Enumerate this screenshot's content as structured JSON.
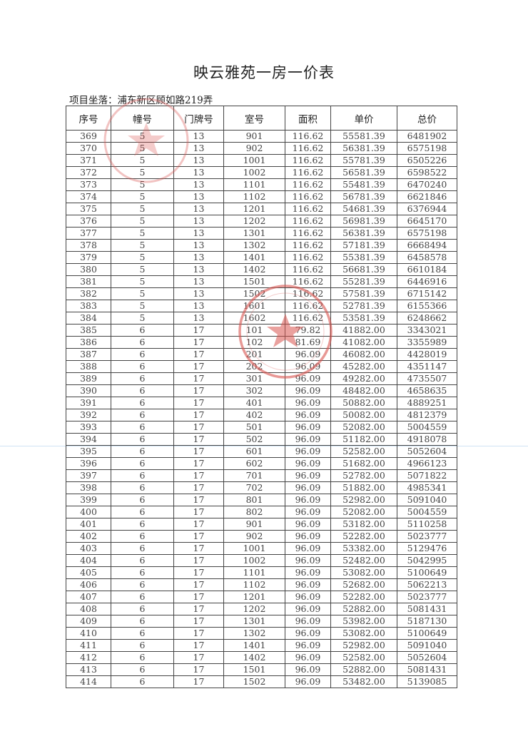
{
  "document": {
    "title": "映云雅苑一房一价表",
    "location_label": "项目坐落：浦东新区顾如路219弄"
  },
  "table": {
    "headers": [
      "序号",
      "幢号",
      "门牌号",
      "室号",
      "面积",
      "单价",
      "总价"
    ],
    "rows": [
      [
        "369",
        "5",
        "13",
        "901",
        "116.62",
        "55581.39",
        "6481902"
      ],
      [
        "370",
        "5",
        "13",
        "902",
        "116.62",
        "56381.39",
        "6575198"
      ],
      [
        "371",
        "5",
        "13",
        "1001",
        "116.62",
        "55781.39",
        "6505226"
      ],
      [
        "372",
        "5",
        "13",
        "1002",
        "116.62",
        "56581.39",
        "6598522"
      ],
      [
        "373",
        "5",
        "13",
        "1101",
        "116.62",
        "55481.39",
        "6470240"
      ],
      [
        "374",
        "5",
        "13",
        "1102",
        "116.62",
        "56781.39",
        "6621846"
      ],
      [
        "375",
        "5",
        "13",
        "1201",
        "116.62",
        "54681.39",
        "6376944"
      ],
      [
        "376",
        "5",
        "13",
        "1202",
        "116.62",
        "56981.39",
        "6645170"
      ],
      [
        "377",
        "5",
        "13",
        "1301",
        "116.62",
        "56381.39",
        "6575198"
      ],
      [
        "378",
        "5",
        "13",
        "1302",
        "116.62",
        "57181.39",
        "6668494"
      ],
      [
        "379",
        "5",
        "13",
        "1401",
        "116.62",
        "55381.39",
        "6458578"
      ],
      [
        "380",
        "5",
        "13",
        "1402",
        "116.62",
        "56681.39",
        "6610184"
      ],
      [
        "381",
        "5",
        "13",
        "1501",
        "116.62",
        "55281.39",
        "6446916"
      ],
      [
        "382",
        "5",
        "13",
        "1502",
        "116.62",
        "57581.39",
        "6715142"
      ],
      [
        "383",
        "5",
        "13",
        "1601",
        "116.62",
        "52781.39",
        "6155366"
      ],
      [
        "384",
        "5",
        "13",
        "1602",
        "116.62",
        "53581.39",
        "6248662"
      ],
      [
        "385",
        "6",
        "17",
        "101",
        "79.82",
        "41882.00",
        "3343021"
      ],
      [
        "386",
        "6",
        "17",
        "102",
        "81.69",
        "41082.00",
        "3355989"
      ],
      [
        "387",
        "6",
        "17",
        "201",
        "96.09",
        "46082.00",
        "4428019"
      ],
      [
        "388",
        "6",
        "17",
        "202",
        "96.09",
        "45282.00",
        "4351147"
      ],
      [
        "389",
        "6",
        "17",
        "301",
        "96.09",
        "49282.00",
        "4735507"
      ],
      [
        "390",
        "6",
        "17",
        "302",
        "96.09",
        "48482.00",
        "4658635"
      ],
      [
        "391",
        "6",
        "17",
        "401",
        "96.09",
        "50882.00",
        "4889251"
      ],
      [
        "392",
        "6",
        "17",
        "402",
        "96.09",
        "50082.00",
        "4812379"
      ],
      [
        "393",
        "6",
        "17",
        "501",
        "96.09",
        "52082.00",
        "5004559"
      ],
      [
        "394",
        "6",
        "17",
        "502",
        "96.09",
        "51182.00",
        "4918078"
      ],
      [
        "395",
        "6",
        "17",
        "601",
        "96.09",
        "52582.00",
        "5052604"
      ],
      [
        "396",
        "6",
        "17",
        "602",
        "96.09",
        "51682.00",
        "4966123"
      ],
      [
        "397",
        "6",
        "17",
        "701",
        "96.09",
        "52782.00",
        "5071822"
      ],
      [
        "398",
        "6",
        "17",
        "702",
        "96.09",
        "51882.00",
        "4985341"
      ],
      [
        "399",
        "6",
        "17",
        "801",
        "96.09",
        "52982.00",
        "5091040"
      ],
      [
        "400",
        "6",
        "17",
        "802",
        "96.09",
        "52082.00",
        "5004559"
      ],
      [
        "401",
        "6",
        "17",
        "901",
        "96.09",
        "53182.00",
        "5110258"
      ],
      [
        "402",
        "6",
        "17",
        "902",
        "96.09",
        "52282.00",
        "5023777"
      ],
      [
        "403",
        "6",
        "17",
        "1001",
        "96.09",
        "53382.00",
        "5129476"
      ],
      [
        "404",
        "6",
        "17",
        "1002",
        "96.09",
        "52482.00",
        "5042995"
      ],
      [
        "405",
        "6",
        "17",
        "1101",
        "96.09",
        "53082.00",
        "5100649"
      ],
      [
        "406",
        "6",
        "17",
        "1102",
        "96.09",
        "52682.00",
        "5062213"
      ],
      [
        "407",
        "6",
        "17",
        "1201",
        "96.09",
        "52282.00",
        "5023777"
      ],
      [
        "408",
        "6",
        "17",
        "1202",
        "96.09",
        "52882.00",
        "5081431"
      ],
      [
        "409",
        "6",
        "17",
        "1301",
        "96.09",
        "53982.00",
        "5187130"
      ],
      [
        "410",
        "6",
        "17",
        "1302",
        "96.09",
        "53082.00",
        "5100649"
      ],
      [
        "411",
        "6",
        "17",
        "1401",
        "96.09",
        "52982.00",
        "5091040"
      ],
      [
        "412",
        "6",
        "17",
        "1402",
        "96.09",
        "52582.00",
        "5052604"
      ],
      [
        "413",
        "6",
        "17",
        "1501",
        "96.09",
        "52882.00",
        "5081431"
      ],
      [
        "414",
        "6",
        "17",
        "1502",
        "96.09",
        "53482.00",
        "5139085"
      ]
    ]
  },
  "stamps": {
    "color": "#d9534f",
    "icon": "red-seal-star"
  }
}
